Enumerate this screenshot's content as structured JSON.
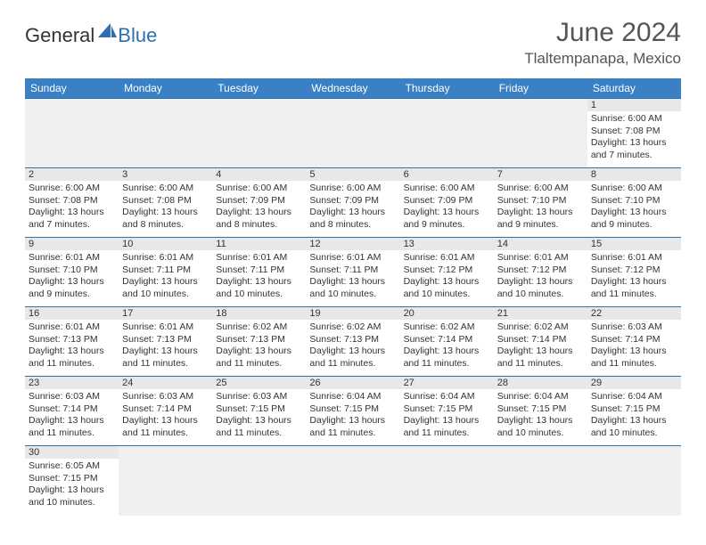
{
  "logo": {
    "part1": "General",
    "part2": "Blue"
  },
  "title": "June 2024",
  "location": "Tlaltempanapa, Mexico",
  "colors": {
    "header_bg": "#3a80c4",
    "border": "#2f6fb0",
    "daynum_bg": "#e8e8e8",
    "empty_bg": "#f0f0f0",
    "text": "#333333",
    "title_text": "#555555"
  },
  "weekdays": [
    "Sunday",
    "Monday",
    "Tuesday",
    "Wednesday",
    "Thursday",
    "Friday",
    "Saturday"
  ],
  "days": {
    "1": {
      "sunrise": "6:00 AM",
      "sunset": "7:08 PM",
      "daylight": "13 hours and 7 minutes."
    },
    "2": {
      "sunrise": "6:00 AM",
      "sunset": "7:08 PM",
      "daylight": "13 hours and 7 minutes."
    },
    "3": {
      "sunrise": "6:00 AM",
      "sunset": "7:08 PM",
      "daylight": "13 hours and 8 minutes."
    },
    "4": {
      "sunrise": "6:00 AM",
      "sunset": "7:09 PM",
      "daylight": "13 hours and 8 minutes."
    },
    "5": {
      "sunrise": "6:00 AM",
      "sunset": "7:09 PM",
      "daylight": "13 hours and 8 minutes."
    },
    "6": {
      "sunrise": "6:00 AM",
      "sunset": "7:09 PM",
      "daylight": "13 hours and 9 minutes."
    },
    "7": {
      "sunrise": "6:00 AM",
      "sunset": "7:10 PM",
      "daylight": "13 hours and 9 minutes."
    },
    "8": {
      "sunrise": "6:00 AM",
      "sunset": "7:10 PM",
      "daylight": "13 hours and 9 minutes."
    },
    "9": {
      "sunrise": "6:01 AM",
      "sunset": "7:10 PM",
      "daylight": "13 hours and 9 minutes."
    },
    "10": {
      "sunrise": "6:01 AM",
      "sunset": "7:11 PM",
      "daylight": "13 hours and 10 minutes."
    },
    "11": {
      "sunrise": "6:01 AM",
      "sunset": "7:11 PM",
      "daylight": "13 hours and 10 minutes."
    },
    "12": {
      "sunrise": "6:01 AM",
      "sunset": "7:11 PM",
      "daylight": "13 hours and 10 minutes."
    },
    "13": {
      "sunrise": "6:01 AM",
      "sunset": "7:12 PM",
      "daylight": "13 hours and 10 minutes."
    },
    "14": {
      "sunrise": "6:01 AM",
      "sunset": "7:12 PM",
      "daylight": "13 hours and 10 minutes."
    },
    "15": {
      "sunrise": "6:01 AM",
      "sunset": "7:12 PM",
      "daylight": "13 hours and 11 minutes."
    },
    "16": {
      "sunrise": "6:01 AM",
      "sunset": "7:13 PM",
      "daylight": "13 hours and 11 minutes."
    },
    "17": {
      "sunrise": "6:01 AM",
      "sunset": "7:13 PM",
      "daylight": "13 hours and 11 minutes."
    },
    "18": {
      "sunrise": "6:02 AM",
      "sunset": "7:13 PM",
      "daylight": "13 hours and 11 minutes."
    },
    "19": {
      "sunrise": "6:02 AM",
      "sunset": "7:13 PM",
      "daylight": "13 hours and 11 minutes."
    },
    "20": {
      "sunrise": "6:02 AM",
      "sunset": "7:14 PM",
      "daylight": "13 hours and 11 minutes."
    },
    "21": {
      "sunrise": "6:02 AM",
      "sunset": "7:14 PM",
      "daylight": "13 hours and 11 minutes."
    },
    "22": {
      "sunrise": "6:03 AM",
      "sunset": "7:14 PM",
      "daylight": "13 hours and 11 minutes."
    },
    "23": {
      "sunrise": "6:03 AM",
      "sunset": "7:14 PM",
      "daylight": "13 hours and 11 minutes."
    },
    "24": {
      "sunrise": "6:03 AM",
      "sunset": "7:14 PM",
      "daylight": "13 hours and 11 minutes."
    },
    "25": {
      "sunrise": "6:03 AM",
      "sunset": "7:15 PM",
      "daylight": "13 hours and 11 minutes."
    },
    "26": {
      "sunrise": "6:04 AM",
      "sunset": "7:15 PM",
      "daylight": "13 hours and 11 minutes."
    },
    "27": {
      "sunrise": "6:04 AM",
      "sunset": "7:15 PM",
      "daylight": "13 hours and 11 minutes."
    },
    "28": {
      "sunrise": "6:04 AM",
      "sunset": "7:15 PM",
      "daylight": "13 hours and 10 minutes."
    },
    "29": {
      "sunrise": "6:04 AM",
      "sunset": "7:15 PM",
      "daylight": "13 hours and 10 minutes."
    },
    "30": {
      "sunrise": "6:05 AM",
      "sunset": "7:15 PM",
      "daylight": "13 hours and 10 minutes."
    }
  },
  "labels": {
    "sunrise": "Sunrise: ",
    "sunset": "Sunset: ",
    "daylight": "Daylight: "
  },
  "grid": [
    [
      null,
      null,
      null,
      null,
      null,
      null,
      "1"
    ],
    [
      "2",
      "3",
      "4",
      "5",
      "6",
      "7",
      "8"
    ],
    [
      "9",
      "10",
      "11",
      "12",
      "13",
      "14",
      "15"
    ],
    [
      "16",
      "17",
      "18",
      "19",
      "20",
      "21",
      "22"
    ],
    [
      "23",
      "24",
      "25",
      "26",
      "27",
      "28",
      "29"
    ],
    [
      "30",
      null,
      null,
      null,
      null,
      null,
      null
    ]
  ]
}
